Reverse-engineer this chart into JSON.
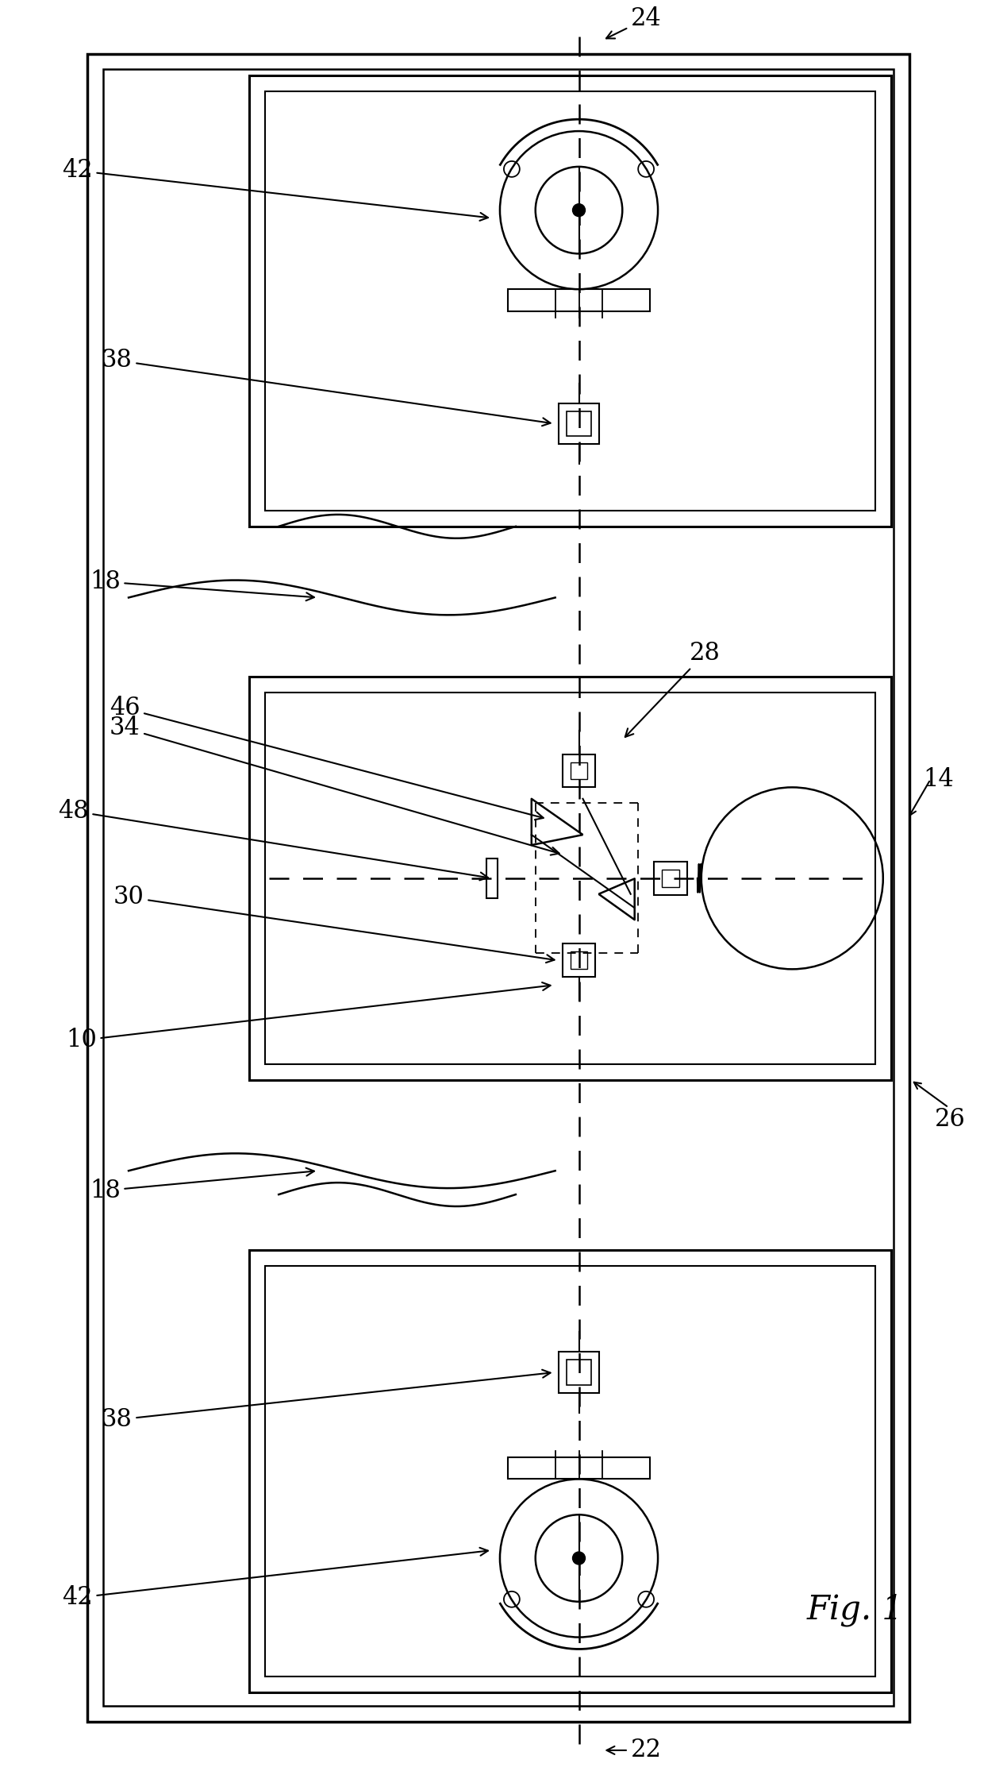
{
  "bg_color": "#ffffff",
  "line_color": "#000000",
  "fig_width": 12.4,
  "fig_height": 22.3,
  "lw_wall": 2.2,
  "lw_obj": 1.6,
  "lw_thin": 1.2
}
